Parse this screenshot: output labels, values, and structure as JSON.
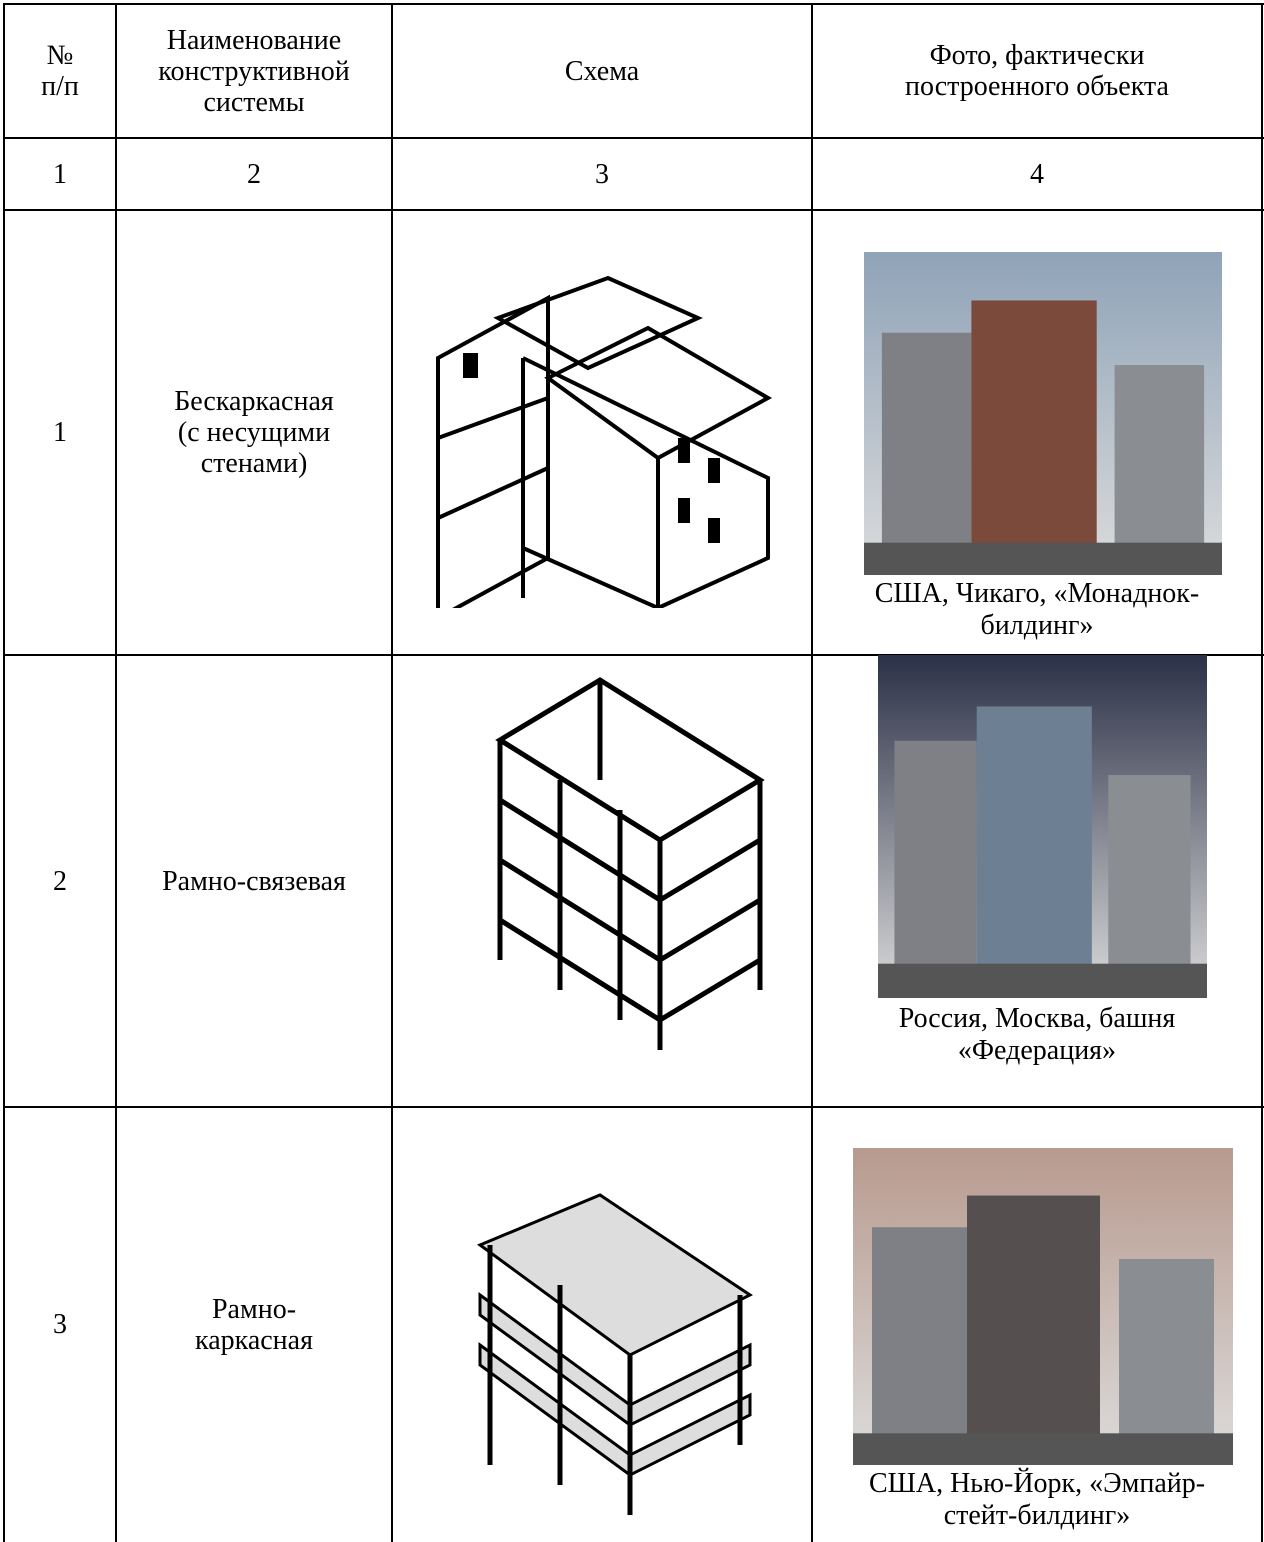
{
  "header": {
    "cells": [
      [
        "№",
        "п/п"
      ],
      [
        "Наименование",
        "конструктивной",
        "системы"
      ],
      [
        "Схема"
      ],
      [
        "Фото, фактически",
        "построенного объекта"
      ]
    ],
    "numbers": [
      "1",
      "2",
      "3",
      "4"
    ]
  },
  "rows": [
    {
      "num": "1",
      "name": [
        "Бескаркасная",
        "(с несущими",
        "стенами)"
      ],
      "caption": [
        "США, Чикаго, «Монаднок-",
        "билдинг»"
      ]
    },
    {
      "num": "2",
      "name": [
        "Рамно-связевая"
      ],
      "caption": [
        "Россия, Москва, башня",
        "«Федерация»"
      ]
    },
    {
      "num": "3",
      "name": [
        "Рамно-",
        "каркасная"
      ],
      "caption": [
        "США, Нью-Йорк, «Эмпайр-",
        "стейт-билдинг»"
      ]
    }
  ]
}
